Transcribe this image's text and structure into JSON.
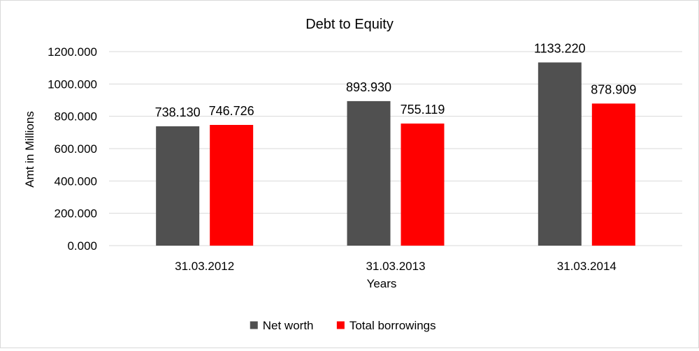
{
  "chart_data": {
    "type": "bar",
    "title": "Debt to Equity",
    "xlabel": "Years",
    "ylabel": "Amt in Millions",
    "categories": [
      "31.03.2012",
      "31.03.2013",
      "31.03.2014"
    ],
    "series": [
      {
        "name": "Net worth",
        "color": "#505050",
        "values": [
          738.13,
          893.93,
          1133.22
        ],
        "labels": [
          "738.130",
          "893.930",
          "1133.220"
        ]
      },
      {
        "name": "Total borrowings",
        "color": "#ff0000",
        "values": [
          746.726,
          755.119,
          878.909
        ],
        "labels": [
          "746.726",
          "755.119",
          "878.909"
        ]
      }
    ],
    "ylim": [
      0,
      1200
    ],
    "yticks": [
      0,
      200,
      400,
      600,
      800,
      1000,
      1200
    ],
    "ytick_labels": [
      "0.000",
      "200.000",
      "400.000",
      "600.000",
      "800.000",
      "1000.000",
      "1200.000"
    ],
    "grid": true,
    "gridline_color": "#d9d9d9",
    "legend_position": "bottom"
  }
}
